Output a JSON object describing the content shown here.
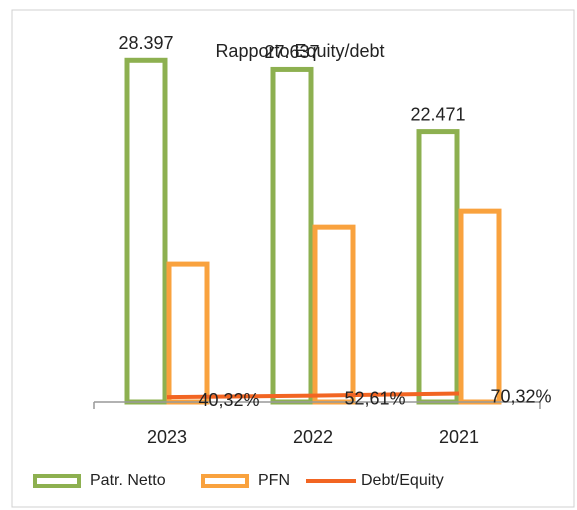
{
  "chart_data": {
    "type": "bar",
    "title": "Rapporto Equity/debt",
    "categories": [
      "2023",
      "2022",
      "2021"
    ],
    "ylim": [
      0,
      30
    ],
    "series": [
      {
        "name": "Patr. Netto",
        "type": "bar",
        "color": "#8db050",
        "values": [
          28.397,
          27.637,
          22.471
        ],
        "value_labels": [
          "28.397",
          "27.637",
          "22.471"
        ]
      },
      {
        "name": "PFN",
        "type": "bar",
        "color": "#f9a23e",
        "values": [
          11.46,
          14.53,
          15.86
        ]
      },
      {
        "name": "Debt/Equity",
        "type": "line",
        "color": "#f26522",
        "values": [
          0.4032,
          0.5261,
          0.7032
        ],
        "value_labels": [
          "40,32%",
          "52,61%",
          "70,32%"
        ]
      }
    ]
  }
}
